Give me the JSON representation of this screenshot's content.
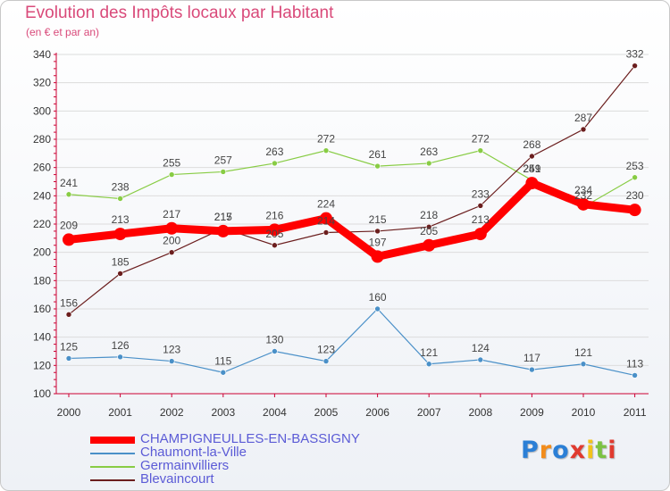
{
  "chart_title": "Evolution des Impôts locaux par Habitant",
  "chart_subtitle": "(en € et par an)",
  "logo": {
    "text": "Proxiti",
    "letter_colors": [
      "#2b7fd6",
      "#f28c1b",
      "#2b7fd6",
      "#e03a2f",
      "#f2c31b",
      "#7cc243",
      "#e03a2f"
    ]
  },
  "chart_data": {
    "type": "line",
    "title": "Evolution des Impôts locaux par Habitant",
    "subtitle": "(en € et par an)",
    "x": [
      "2000",
      "2001",
      "2002",
      "2003",
      "2004",
      "2005",
      "2006",
      "2007",
      "2008",
      "2009",
      "2010",
      "2011"
    ],
    "ylim": [
      100,
      340
    ],
    "yticks": [
      100,
      120,
      140,
      160,
      180,
      200,
      220,
      240,
      260,
      280,
      300,
      320,
      340
    ],
    "grid": true,
    "legend_position": "bottom",
    "series": [
      {
        "name": "CHAMPIGNEULLES-EN-BASSIGNY",
        "color": "#ff0000",
        "values": [
          209,
          213,
          217,
          215,
          216,
          224,
          197,
          205,
          213,
          249,
          234,
          230
        ]
      },
      {
        "name": "Chaumont-la-Ville",
        "color": "#4a90c8",
        "values": [
          125,
          126,
          123,
          115,
          130,
          123,
          160,
          121,
          124,
          117,
          121,
          113
        ]
      },
      {
        "name": "Germainvilliers",
        "color": "#88cc44",
        "values": [
          241,
          238,
          255,
          257,
          263,
          272,
          261,
          263,
          272,
          251,
          232,
          253
        ]
      },
      {
        "name": "Blevaincourt",
        "color": "#6b1e1e",
        "values": [
          156,
          185,
          200,
          217,
          205,
          214,
          215,
          218,
          233,
          268,
          287,
          332
        ]
      }
    ]
  }
}
